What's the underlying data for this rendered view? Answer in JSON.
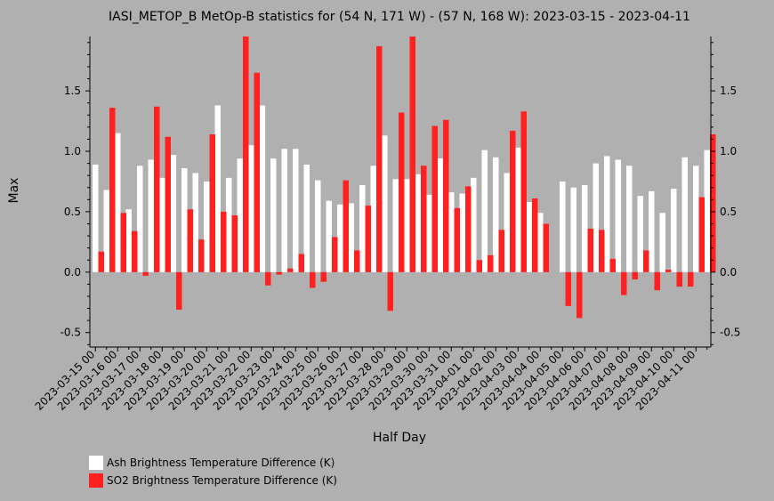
{
  "chart_data": {
    "type": "bar",
    "title": "IASI_METOP_B MetOp-B statistics for (54 N, 171 W) - (57 N, 168 W): 2023-03-15 - 2023-04-11",
    "xlabel": "Half Day",
    "ylabel": "Max",
    "ylim": [
      -0.62,
      1.95
    ],
    "yticks": [
      -0.5,
      0.0,
      0.5,
      1.0,
      1.5
    ],
    "ytick_labels": [
      "-0.5",
      "0.0",
      "0.5",
      "1.0",
      "1.5"
    ],
    "xtick_labels": [
      "2023-03-15 00",
      "2023-03-16 00",
      "2023-03-17 00",
      "2023-03-18 00",
      "2023-03-19 00",
      "2023-03-20 00",
      "2023-03-21 00",
      "2023-03-22 00",
      "2023-03-23 00",
      "2023-03-24 00",
      "2023-03-25 00",
      "2023-03-26 00",
      "2023-03-27 00",
      "2023-03-28 00",
      "2023-03-29 00",
      "2023-03-30 00",
      "2023-03-31 00",
      "2023-04-01 00",
      "2023-04-02 00",
      "2023-04-03 00",
      "2023-04-04 00",
      "2023-04-05 00",
      "2023-04-06 00",
      "2023-04-07 00",
      "2023-04-08 00",
      "2023-04-09 00",
      "2023-04-10 00",
      "2023-04-11 00"
    ],
    "legend_position": "bottom-left",
    "series": [
      {
        "name": "Ash Brightness Temperature Difference (K)",
        "color": "#ffffff",
        "values": [
          0.89,
          0.68,
          1.15,
          0.52,
          0.88,
          0.93,
          0.78,
          0.97,
          0.86,
          0.82,
          0.75,
          1.38,
          0.78,
          0.94,
          1.05,
          1.38,
          0.94,
          1.02,
          1.02,
          0.89,
          0.76,
          0.59,
          0.56,
          0.57,
          0.72,
          0.88,
          1.13,
          0.77,
          0.77,
          0.81,
          0.64,
          0.94,
          0.66,
          0.65,
          0.78,
          1.01,
          0.95,
          0.82,
          1.03,
          0.58,
          0.49,
          null,
          0.75,
          0.7,
          0.72,
          0.9,
          0.96,
          0.93,
          0.88,
          0.63,
          0.67,
          0.49,
          0.69,
          0.95,
          0.88,
          1.01
        ]
      },
      {
        "name": "SO2 Brightness Temperature Difference (K)",
        "color": "#ff2020",
        "values": [
          0.17,
          1.36,
          0.49,
          0.34,
          -0.03,
          1.37,
          1.12,
          -0.31,
          0.52,
          0.27,
          1.14,
          0.5,
          0.47,
          1.96,
          1.65,
          -0.11,
          -0.02,
          0.03,
          0.15,
          -0.13,
          -0.08,
          0.29,
          0.76,
          0.18,
          0.55,
          1.87,
          -0.32,
          1.32,
          1.95,
          0.88,
          1.21,
          1.26,
          0.53,
          0.71,
          0.1,
          0.14,
          0.35,
          1.17,
          1.33,
          0.61,
          0.4,
          null,
          -0.28,
          -0.38,
          0.36,
          0.35,
          0.11,
          -0.19,
          -0.06,
          0.18,
          -0.15,
          0.02,
          -0.12,
          -0.12,
          0.62,
          1.14
        ]
      }
    ]
  }
}
